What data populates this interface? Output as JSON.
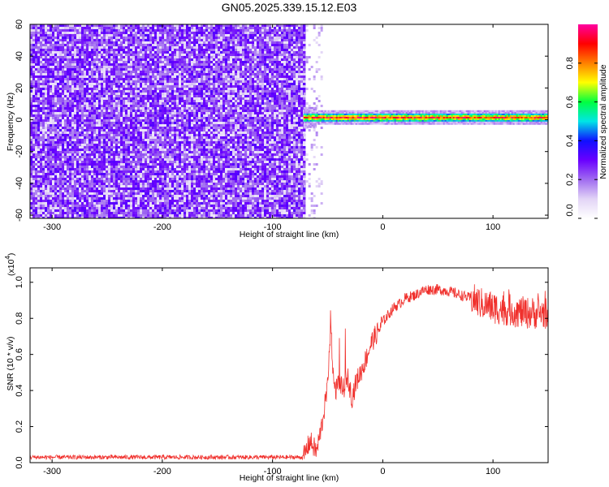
{
  "chart_data": [
    {
      "type": "heatmap",
      "title": "GN05.2025.339.15.12.E03",
      "xlabel": "Height of straight line (km)",
      "ylabel": "Frequency (Hz)",
      "xlim": [
        -320,
        150
      ],
      "ylim": [
        -62,
        60
      ],
      "xticks": [
        -300,
        -200,
        -100,
        0,
        100
      ],
      "yticks": [
        -60,
        -40,
        -20,
        0,
        20,
        40,
        60
      ],
      "grid": false,
      "regions": {
        "noise_x": [
          -320,
          -72
        ],
        "sparse_x": [
          -72,
          -55
        ],
        "blank_x": [
          -55,
          150
        ],
        "band_x": [
          -72,
          150
        ],
        "band_center_freq": 1.5,
        "band_width_hz": 4
      },
      "colorbar": {
        "label": "Normalized spectral amplitude",
        "range": [
          0,
          1
        ],
        "ticks": [
          0.0,
          0.2,
          0.4,
          0.6,
          0.8
        ],
        "tick_labels": [
          "0.0",
          "0.2",
          "0.4",
          "0.6",
          "0.8"
        ],
        "colormap": [
          "#ffffff",
          "#e2d4f6",
          "#a06bf0",
          "#6a00ff",
          "#1010ff",
          "#00e6e6",
          "#00ff40",
          "#ffff00",
          "#ff8000",
          "#ff0000",
          "#ff00a0"
        ]
      }
    },
    {
      "type": "line",
      "xlabel": "Height of straight line (km)",
      "ylabel": "SNR (10 * v/v)",
      "y_multiplier": "(x10",
      "y_multiplier_exp": "4",
      "y_multiplier_close": ")",
      "xlim": [
        -320,
        150
      ],
      "ylim": [
        0,
        1.08
      ],
      "xticks": [
        -300,
        -200,
        -100,
        0,
        100
      ],
      "yticks": [
        0.0,
        0.2,
        0.4,
        0.6,
        0.8,
        1.0
      ],
      "ytick_labels": [
        "0.0",
        "0.2",
        "0.4",
        "0.6",
        "0.8",
        "1.0"
      ],
      "grid": false,
      "line_color": "#f0302c",
      "series": [
        {
          "x": [
            -320,
            -200,
            -100,
            -72,
            -66,
            -60,
            -55,
            -50,
            -47,
            -44,
            -40,
            -36,
            -32,
            -28,
            -24,
            -20,
            -15,
            -10,
            -5,
            0,
            5,
            10,
            15,
            20,
            25,
            30,
            35,
            40,
            50,
            60,
            70,
            80,
            90,
            100,
            110,
            120,
            130,
            140,
            150
          ],
          "values": [
            0.03,
            0.03,
            0.03,
            0.03,
            0.12,
            0.06,
            0.22,
            0.42,
            0.75,
            0.38,
            0.45,
            0.4,
            0.48,
            0.36,
            0.45,
            0.5,
            0.58,
            0.67,
            0.72,
            0.78,
            0.82,
            0.86,
            0.88,
            0.91,
            0.92,
            0.93,
            0.95,
            0.96,
            0.96,
            0.95,
            0.93,
            0.91,
            0.88,
            0.86,
            0.85,
            0.84,
            0.83,
            0.83,
            0.83
          ]
        }
      ]
    }
  ]
}
